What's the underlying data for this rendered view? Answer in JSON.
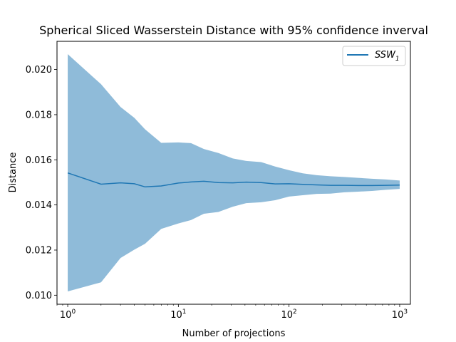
{
  "chart_data": {
    "type": "line",
    "title": "Spherical Sliced Wasserstein Distance with 95% confidence inverval",
    "xlabel": "Number of projections",
    "ylabel": "Distance",
    "xscale": "log",
    "xlim": [
      0.8,
      1250
    ],
    "ylim": [
      0.0096,
      0.02125
    ],
    "xticks": [
      {
        "value": 1,
        "base": "10",
        "exp": "0"
      },
      {
        "value": 10,
        "base": "10",
        "exp": "1"
      },
      {
        "value": 100,
        "base": "10",
        "exp": "2"
      },
      {
        "value": 1000,
        "base": "10",
        "exp": "3"
      }
    ],
    "yticks": [
      {
        "value": 0.01,
        "label": "0.010"
      },
      {
        "value": 0.012,
        "label": "0.012"
      },
      {
        "value": 0.014,
        "label": "0.014"
      },
      {
        "value": 0.016,
        "label": "0.016"
      },
      {
        "value": 0.018,
        "label": "0.018"
      },
      {
        "value": 0.02,
        "label": "0.020"
      }
    ],
    "grid": false,
    "legend_position": "top-right",
    "series": [
      {
        "name_base": "SSW",
        "name_sub": "1",
        "color": "#1f77b4",
        "band_color": "#1f77b4",
        "band_opacity": 0.5,
        "x": [
          1,
          2,
          3,
          4,
          5,
          7,
          10,
          13,
          17,
          23,
          31,
          41,
          56,
          75,
          100,
          133,
          178,
          237,
          316,
          422,
          562,
          750,
          1000
        ],
        "y": [
          0.01542,
          0.01492,
          0.01498,
          0.01494,
          0.0148,
          0.01484,
          0.01497,
          0.01502,
          0.01505,
          0.01499,
          0.01498,
          0.01501,
          0.01499,
          0.01493,
          0.01494,
          0.01491,
          0.01489,
          0.01487,
          0.01487,
          0.01486,
          0.01486,
          0.01487,
          0.01488
        ],
        "upper": [
          0.02068,
          0.01935,
          0.01834,
          0.01786,
          0.01735,
          0.01675,
          0.01677,
          0.01674,
          0.01648,
          0.0163,
          0.01606,
          0.01595,
          0.0159,
          0.0157,
          0.01554,
          0.0154,
          0.01532,
          0.01527,
          0.01524,
          0.0152,
          0.01516,
          0.01513,
          0.01508
        ],
        "lower": [
          0.01017,
          0.01057,
          0.01165,
          0.01202,
          0.01228,
          0.01294,
          0.01318,
          0.01333,
          0.01361,
          0.01369,
          0.01392,
          0.01408,
          0.01412,
          0.01421,
          0.01437,
          0.01443,
          0.01449,
          0.0145,
          0.01456,
          0.01459,
          0.01462,
          0.01467,
          0.01471
        ]
      }
    ]
  }
}
